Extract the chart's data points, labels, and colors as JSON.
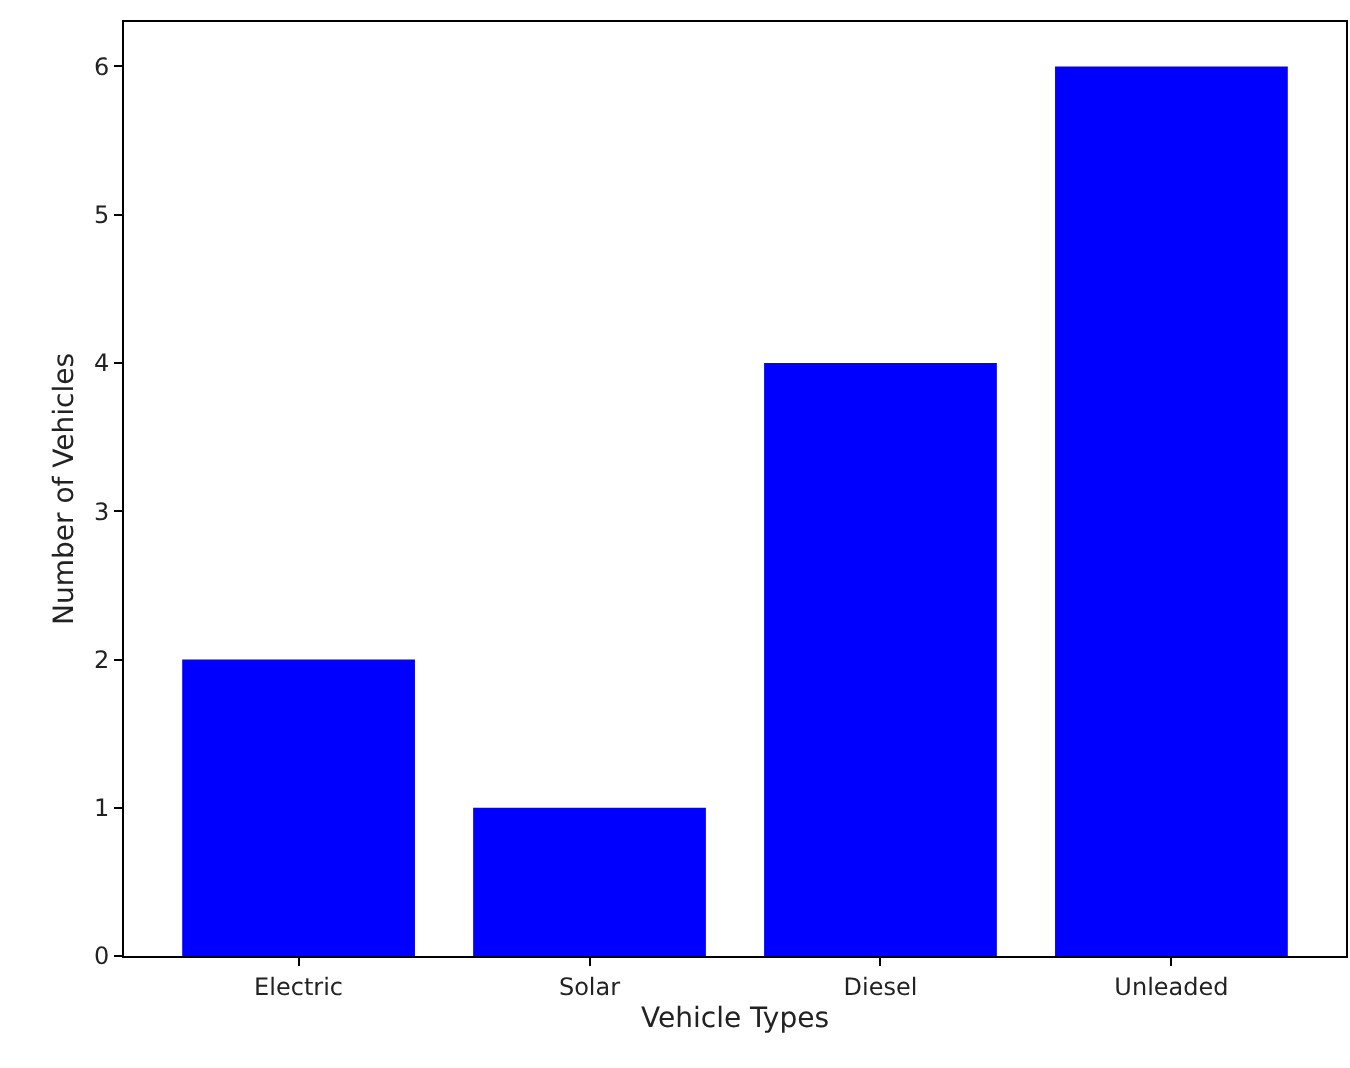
{
  "chart_data": {
    "type": "bar",
    "xlabel": "Vehicle Types",
    "ylabel": "Number of Vehicles",
    "categories": [
      "Electric",
      "Solar",
      "Diesel",
      "Unleaded"
    ],
    "values": [
      2,
      1,
      4,
      6
    ],
    "color": "#0000ff",
    "ylim": [
      0,
      6.3
    ],
    "yticks": [
      0,
      1,
      2,
      3,
      4,
      5,
      6
    ]
  }
}
